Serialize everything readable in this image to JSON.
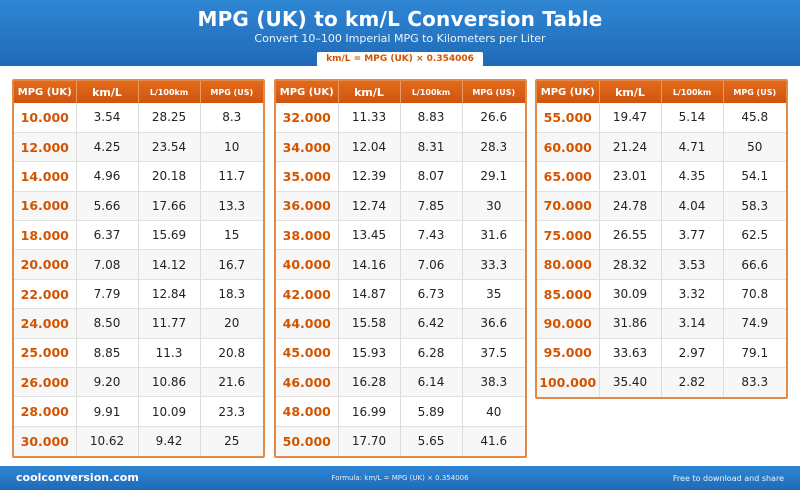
{
  "header": {
    "title": "MPG (UK) to km/L Conversion Table",
    "subtitle": "Convert 10–100 Imperial MPG to Kilometers per Liter",
    "formula": "km/L = MPG (UK) × 0.354006"
  },
  "columns": [
    "MPG (UK)",
    "km/L",
    "L/100km",
    "MPG (US)"
  ],
  "tables": [
    {
      "rows": [
        [
          "10.000",
          "3.54",
          "28.25",
          "8.3"
        ],
        [
          "12.000",
          "4.25",
          "23.54",
          "10"
        ],
        [
          "14.000",
          "4.96",
          "20.18",
          "11.7"
        ],
        [
          "16.000",
          "5.66",
          "17.66",
          "13.3"
        ],
        [
          "18.000",
          "6.37",
          "15.69",
          "15"
        ],
        [
          "20.000",
          "7.08",
          "14.12",
          "16.7"
        ],
        [
          "22.000",
          "7.79",
          "12.84",
          "18.3"
        ],
        [
          "24.000",
          "8.50",
          "11.77",
          "20"
        ],
        [
          "25.000",
          "8.85",
          "11.3",
          "20.8"
        ],
        [
          "26.000",
          "9.20",
          "10.86",
          "21.6"
        ],
        [
          "28.000",
          "9.91",
          "10.09",
          "23.3"
        ],
        [
          "30.000",
          "10.62",
          "9.42",
          "25"
        ]
      ]
    },
    {
      "rows": [
        [
          "32.000",
          "11.33",
          "8.83",
          "26.6"
        ],
        [
          "34.000",
          "12.04",
          "8.31",
          "28.3"
        ],
        [
          "35.000",
          "12.39",
          "8.07",
          "29.1"
        ],
        [
          "36.000",
          "12.74",
          "7.85",
          "30"
        ],
        [
          "38.000",
          "13.45",
          "7.43",
          "31.6"
        ],
        [
          "40.000",
          "14.16",
          "7.06",
          "33.3"
        ],
        [
          "42.000",
          "14.87",
          "6.73",
          "35"
        ],
        [
          "44.000",
          "15.58",
          "6.42",
          "36.6"
        ],
        [
          "45.000",
          "15.93",
          "6.28",
          "37.5"
        ],
        [
          "46.000",
          "16.28",
          "6.14",
          "38.3"
        ],
        [
          "48.000",
          "16.99",
          "5.89",
          "40"
        ],
        [
          "50.000",
          "17.70",
          "5.65",
          "41.6"
        ]
      ]
    },
    {
      "rows": [
        [
          "55.000",
          "19.47",
          "5.14",
          "45.8"
        ],
        [
          "60.000",
          "21.24",
          "4.71",
          "50"
        ],
        [
          "65.000",
          "23.01",
          "4.35",
          "54.1"
        ],
        [
          "70.000",
          "24.78",
          "4.04",
          "58.3"
        ],
        [
          "75.000",
          "26.55",
          "3.77",
          "62.5"
        ],
        [
          "80.000",
          "28.32",
          "3.53",
          "66.6"
        ],
        [
          "85.000",
          "30.09",
          "3.32",
          "70.8"
        ],
        [
          "90.000",
          "31.86",
          "3.14",
          "74.9"
        ],
        [
          "95.000",
          "33.63",
          "2.97",
          "79.1"
        ],
        [
          "100.000",
          "35.40",
          "2.82",
          "83.3"
        ]
      ]
    }
  ],
  "footer": {
    "site": "coolconversion.com",
    "formula": "Formula: km/L = MPG (UK) × 0.354006",
    "note": "Free to download and share"
  }
}
